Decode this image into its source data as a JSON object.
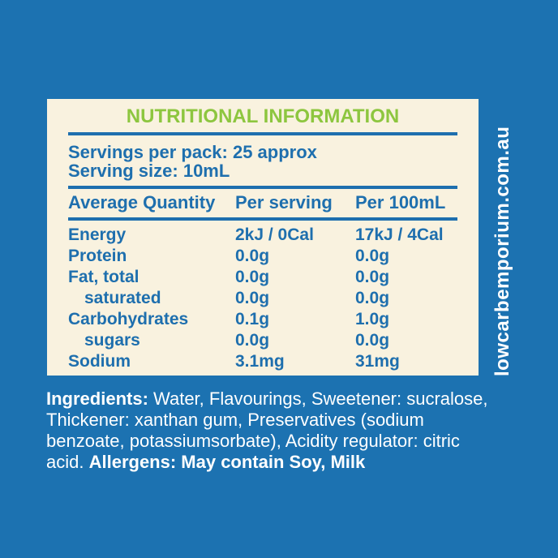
{
  "colors": {
    "background_blue": "#1c72b1",
    "panel_cream": "#f9f2df",
    "title_green": "#8dc63f",
    "text_blue": "#1e6fae",
    "ingredients_white": "#ffffff"
  },
  "panel": {
    "title": "NUTRITIONAL INFORMATION",
    "servings": {
      "per_pack": "Servings per pack: 25 approx",
      "size": "Serving size: 10mL"
    },
    "table": {
      "columns": [
        "Average Quantity",
        "Per serving",
        "Per 100mL"
      ],
      "rows": [
        {
          "label": "Energy",
          "per_serving": "2kJ / 0Cal",
          "per_100ml": "17kJ / 4Cal"
        },
        {
          "label": "Protein",
          "per_serving": "0.0g",
          "per_100ml": "0.0g"
        },
        {
          "label": "Fat, total",
          "per_serving": "0.0g",
          "per_100ml": "0.0g"
        },
        {
          "label": "saturated",
          "per_serving": "0.0g",
          "per_100ml": "0.0g"
        },
        {
          "label": "Carbohydrates",
          "per_serving": "0.1g",
          "per_100ml": "1.0g"
        },
        {
          "label": "sugars",
          "per_serving": "0.0g",
          "per_100ml": "0.0g"
        },
        {
          "label": "Sodium",
          "per_serving": "3.1mg",
          "per_100ml": "31mg"
        }
      ]
    }
  },
  "ingredients": {
    "line1_bold": "Ingredients:",
    "line1_rest": " Water, Flavourings, Sweetener: sucralose,",
    "line2": "Thickener: xanthan gum, Preservatives (sodium",
    "line3": "benzoate, potassiumsorbate), Acidity regulator: citric",
    "line4_start": "acid. ",
    "line4_bold": "Allergens: May contain Soy, Milk"
  },
  "watermark": {
    "text": "lowcarbemporium.com.au"
  }
}
